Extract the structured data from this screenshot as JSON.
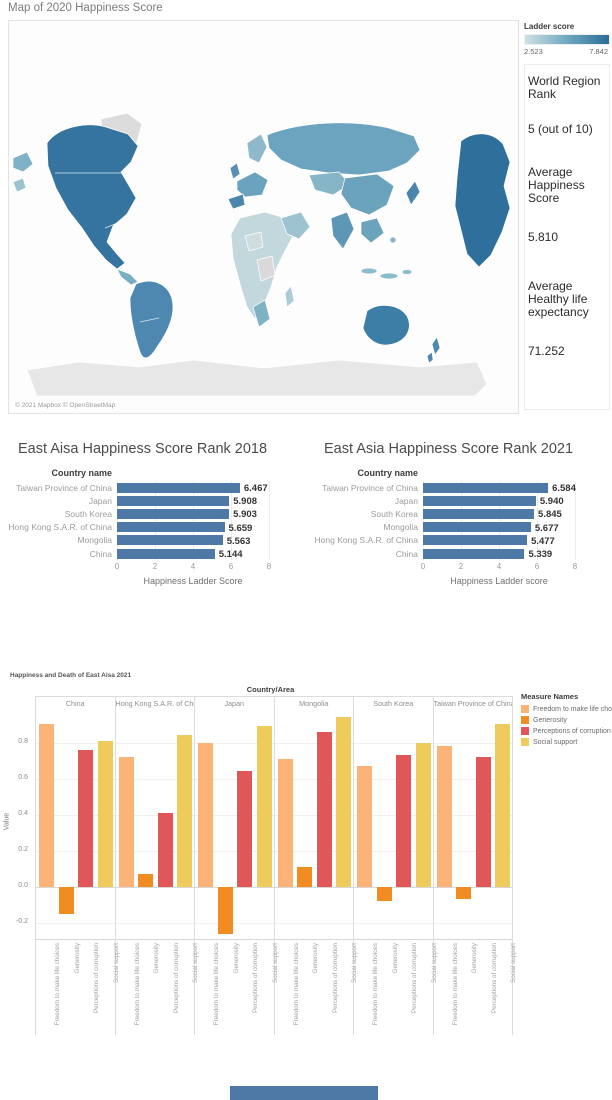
{
  "header": {
    "title": "Map of 2020 Happiness Score"
  },
  "map": {
    "legend": {
      "title": "Ladder score",
      "min": "2.523",
      "max": "7.842",
      "gradient_start": "#cfe0e5",
      "gradient_mid": "#6fa9c0",
      "gradient_end": "#2c6c97"
    },
    "attribution": "© 2021 Mapbox © OpenStreetMap",
    "no_data_color": "#dcdcdc",
    "stats": [
      {
        "label": "World Region Rank",
        "value": "5 (out of 10)"
      },
      {
        "label": "Average Happiness Score",
        "value": "5.810"
      },
      {
        "label": "Average Healthy life expectancy",
        "value": "71.252"
      }
    ]
  },
  "bottom_bar": {
    "color": "#4e79a7"
  },
  "chart_data": [
    {
      "type": "choropleth_map",
      "title": "Map of 2020 Happiness Score",
      "color_field": "Ladder score",
      "color_domain": [
        2.523,
        7.842
      ],
      "summary": {
        "world_region_rank": "5 (out of 10)",
        "average_happiness_score": 5.81,
        "average_healthy_life_expectancy": 71.252
      }
    },
    {
      "type": "bar",
      "orientation": "horizontal",
      "title": "East Aisa Happiness Score Rank 2018",
      "row_header": "Country name",
      "categories": [
        "Taiwan Province of China",
        "Japan",
        "South Korea",
        "Hong Kong S.A.R. of China",
        "Mongolia",
        "China"
      ],
      "values": [
        6.467,
        5.908,
        5.903,
        5.659,
        5.563,
        5.144
      ],
      "xlabel": "Happiness Ladder Score",
      "xlim": [
        0,
        8
      ],
      "xticks": [
        0,
        2,
        4,
        6,
        8
      ],
      "bar_color": "#4e79a7"
    },
    {
      "type": "bar",
      "orientation": "horizontal",
      "title": "East Asia Happiness Score Rank 2021",
      "row_header": "Country name",
      "categories": [
        "Taiwan Province of China",
        "Japan",
        "South Korea",
        "Mongolia",
        "Hong Kong S.A.R. of China",
        "China"
      ],
      "values": [
        6.584,
        5.94,
        5.845,
        5.677,
        5.477,
        5.339
      ],
      "xlabel": "Happiness Ladder score",
      "xlim": [
        0,
        8
      ],
      "xticks": [
        0,
        2,
        4,
        6,
        8
      ],
      "bar_color": "#4e79a7"
    },
    {
      "type": "grouped_bar",
      "title": "Happiness and Death of East Aisa 2021",
      "panel_header": "Country/Area",
      "ylabel": "Value",
      "ylim": [
        -0.29,
        0.98
      ],
      "yticks": [
        -0.2,
        0.0,
        0.2,
        0.4,
        0.6,
        0.8
      ],
      "categories": [
        "China",
        "Hong Kong S.A.R. of China",
        "Japan",
        "Mongolia",
        "South Korea",
        "Taiwan Province of China"
      ],
      "legend_title": "Measure Names",
      "legend_position": "right",
      "series": [
        {
          "name": "Freedom to make life choices",
          "color": "#fbb377",
          "values": [
            0.9,
            0.72,
            0.8,
            0.71,
            0.67,
            0.78
          ]
        },
        {
          "name": "Generosity",
          "color": "#f08c21",
          "values": [
            -0.15,
            0.07,
            -0.26,
            0.11,
            -0.08,
            -0.07
          ]
        },
        {
          "name": "Perceptions of corruption",
          "color": "#e05759",
          "values": [
            0.76,
            0.41,
            0.64,
            0.86,
            0.73,
            0.72
          ]
        },
        {
          "name": "Social support",
          "color": "#eecb5c",
          "values": [
            0.81,
            0.84,
            0.89,
            0.94,
            0.8,
            0.9
          ]
        }
      ]
    }
  ]
}
